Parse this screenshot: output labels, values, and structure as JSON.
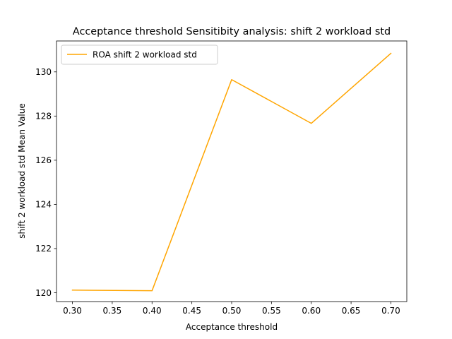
{
  "chart_data": {
    "type": "line",
    "title": "Acceptance threshold Sensitibity analysis: shift 2 workload std",
    "xlabel": "Acceptance threshold",
    "ylabel": "shift 2 workload std Mean Value",
    "x": [
      0.3,
      0.4,
      0.5,
      0.6,
      0.7
    ],
    "xticks": [
      0.3,
      0.35,
      0.4,
      0.45,
      0.5,
      0.55,
      0.6,
      0.65,
      0.7
    ],
    "xtick_labels": [
      "0.30",
      "0.35",
      "0.40",
      "0.45",
      "0.50",
      "0.55",
      "0.60",
      "0.65",
      "0.70"
    ],
    "yticks": [
      120,
      122,
      124,
      126,
      128,
      130
    ],
    "ytick_labels": [
      "120",
      "122",
      "124",
      "126",
      "128",
      "130"
    ],
    "xlim": [
      0.28,
      0.72
    ],
    "ylim": [
      119.6,
      131.4
    ],
    "grid": false,
    "legend_position": "upper-left",
    "series": [
      {
        "name": "ROA shift 2 workload std",
        "color": "#ffa500",
        "values": [
          120.12,
          120.09,
          129.65,
          127.67,
          130.84
        ]
      }
    ]
  }
}
